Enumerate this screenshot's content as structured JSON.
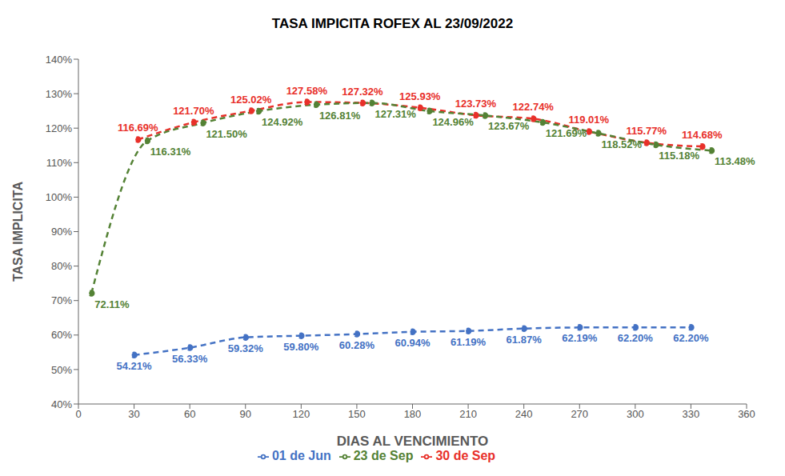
{
  "chart_data": {
    "type": "line",
    "title": "TASA IMPICITA ROFEX AL 23/09/2022",
    "x_label": "DIAS AL VENCIMIENTO",
    "y_label": "TASA IMPLICITA",
    "xlim": [
      0,
      360
    ],
    "xticks": [
      0,
      30,
      60,
      90,
      120,
      150,
      180,
      210,
      240,
      270,
      300,
      330,
      360
    ],
    "ylim": [
      40,
      140
    ],
    "yticks": [
      {
        "value": 40,
        "label": "40%"
      },
      {
        "value": 50,
        "label": "50%"
      },
      {
        "value": 60,
        "label": "60%"
      },
      {
        "value": 70,
        "label": "70%"
      },
      {
        "value": 80,
        "label": "80%"
      },
      {
        "value": 90,
        "label": "90%"
      },
      {
        "value": 100,
        "label": "100%"
      },
      {
        "value": 110,
        "label": "110%"
      },
      {
        "value": 120,
        "label": "120%"
      },
      {
        "value": 130,
        "label": "130%"
      },
      {
        "value": 140,
        "label": "140%"
      }
    ],
    "grid": false,
    "legend": "bottom",
    "data_labels": true,
    "series": [
      {
        "name": "30 de Sep",
        "color": "#e8302a",
        "marker": "circle",
        "line_style": "dashed",
        "x": [
          32,
          62,
          93,
          123,
          153,
          184,
          214,
          245,
          275,
          306,
          336
        ],
        "values": [
          116.69,
          121.7,
          125.02,
          127.58,
          127.32,
          125.93,
          123.73,
          122.74,
          119.01,
          115.77,
          114.68
        ],
        "value_labels": [
          "116.69%",
          "121.70%",
          "125.02%",
          "127.58%",
          "127.32%",
          "125.93%",
          "123.73%",
          "122.74%",
          "119.01%",
          "115.77%",
          "114.68%"
        ]
      },
      {
        "name": "01 de Jun",
        "color": "#4472c4",
        "marker": "circle",
        "line_style": "dashed",
        "x": [
          30,
          60,
          90,
          120,
          150,
          180,
          210,
          240,
          270,
          300,
          330
        ],
        "values": [
          54.21,
          56.33,
          59.32,
          59.8,
          60.28,
          60.94,
          61.19,
          61.87,
          62.19,
          62.2,
          62.2
        ],
        "value_labels": [
          "54.21%",
          "56.33%",
          "59.32%",
          "59.80%",
          "60.28%",
          "60.94%",
          "61.19%",
          "61.87%",
          "62.19%",
          "62.20%",
          "62.20%"
        ]
      },
      {
        "name": "23 de Sep",
        "color": "#548235",
        "marker": "circle",
        "line_style": "dashed",
        "x": [
          7,
          37,
          67,
          97,
          128,
          158,
          189,
          219,
          250,
          280,
          311,
          341
        ],
        "values": [
          72.11,
          116.31,
          121.5,
          124.92,
          126.81,
          127.31,
          124.96,
          123.67,
          121.69,
          118.52,
          115.18,
          113.48
        ],
        "value_labels": [
          "72.11%",
          "116.31%",
          "121.50%",
          "124.92%",
          "126.81%",
          "127.31%",
          "124.96%",
          "123.67%",
          "121.69%",
          "118.52%",
          "115.18%",
          "113.48%"
        ]
      }
    ]
  }
}
